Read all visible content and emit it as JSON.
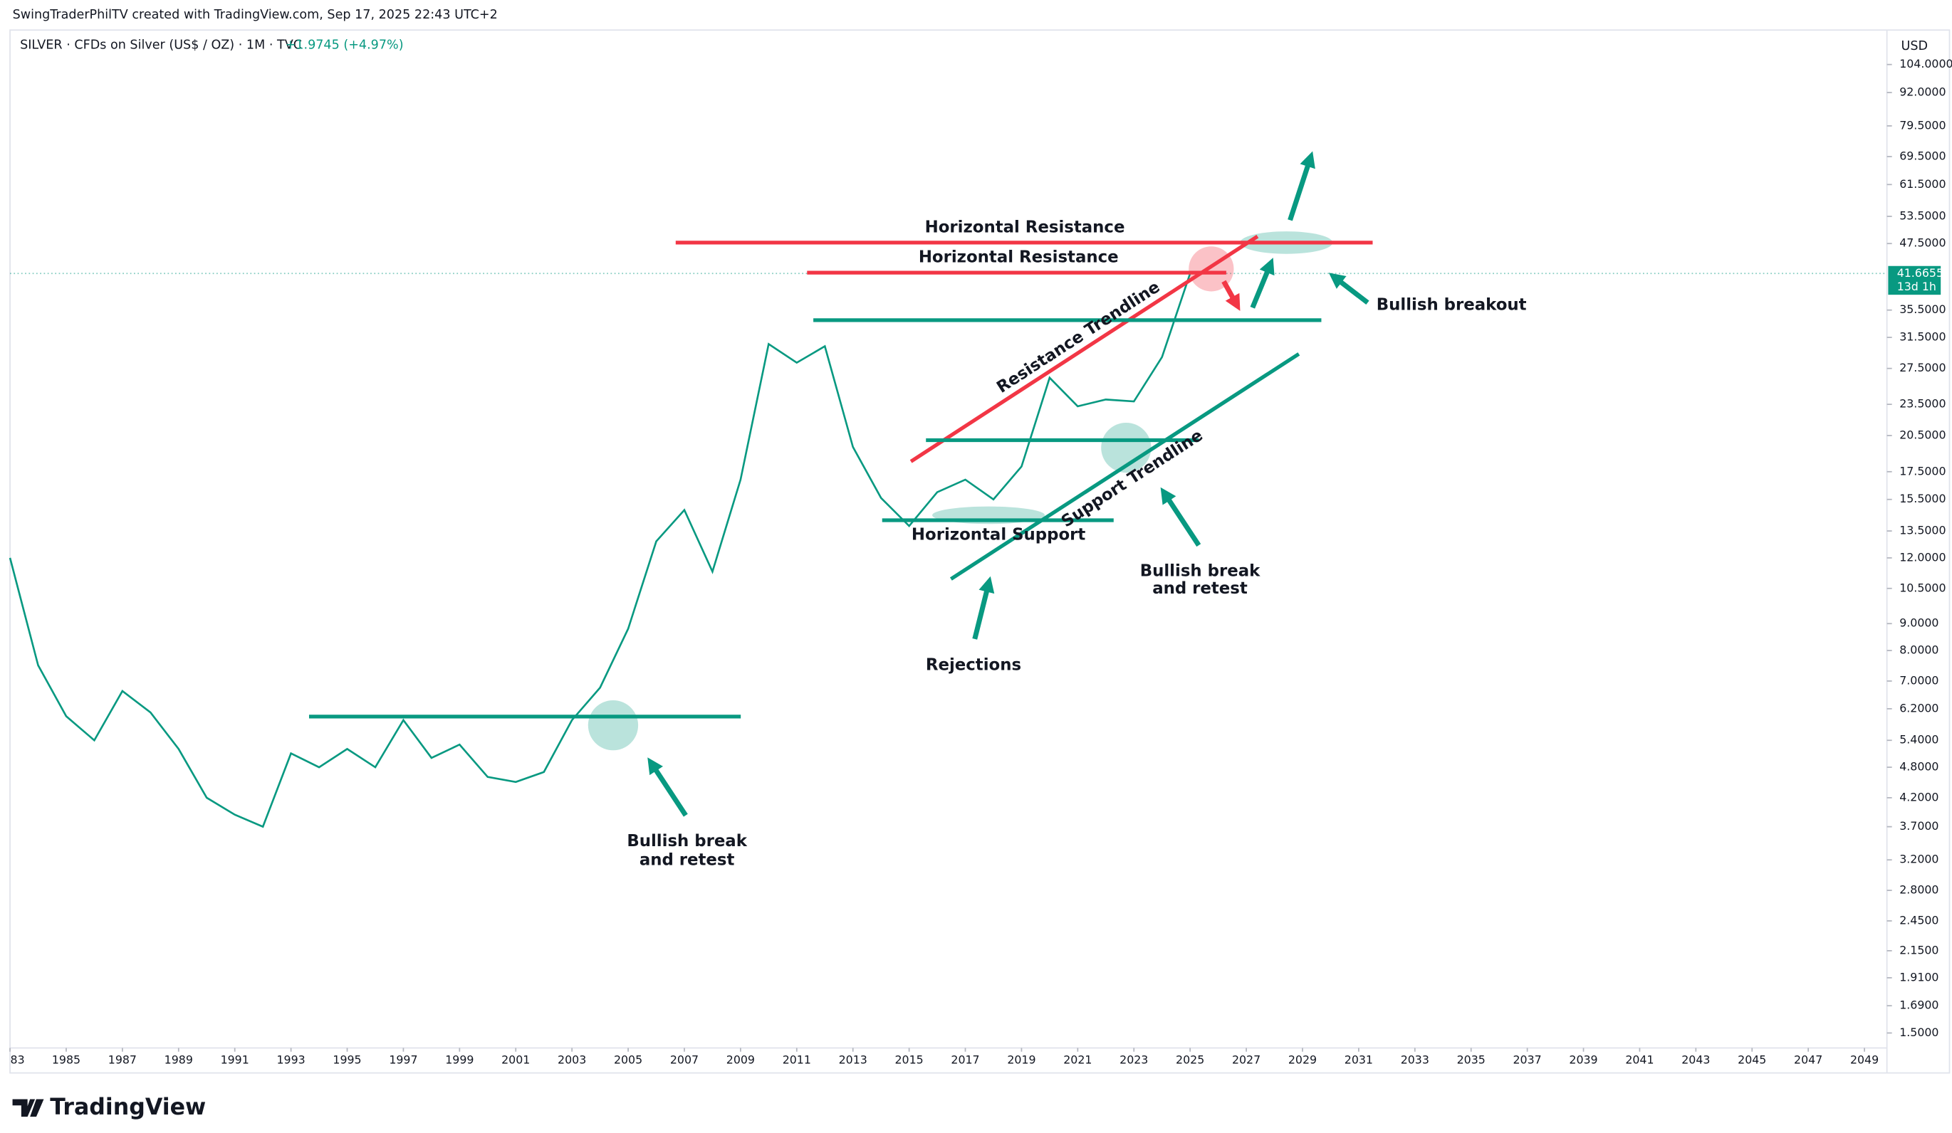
{
  "header": {
    "credit": "SwingTraderPhilTV created with TradingView.com, Sep 17, 2025 22:43 UTC+2",
    "symbol": "SILVER · CFDs on Silver (US$ / OZ) · 1M · TVC",
    "change": "+1.9745 (+4.97%)",
    "currency": "USD",
    "brand": "TradingView"
  },
  "chart_data": {
    "type": "line",
    "log_scale": true,
    "grid": false,
    "x": [
      1983,
      1984,
      1985,
      1986,
      1987,
      1988,
      1989,
      1990,
      1991,
      1992,
      1993,
      1994,
      1995,
      1996,
      1997,
      1998,
      1999,
      2000,
      2001,
      2002,
      2003,
      2004,
      2005,
      2006,
      2007,
      2008,
      2009,
      2010,
      2011,
      2012,
      2013,
      2014,
      2015,
      2016,
      2017,
      2018,
      2019,
      2020,
      2021,
      2022,
      2023,
      2024,
      2025
    ],
    "series": [
      {
        "name": "SILVER",
        "color": "#089981",
        "values": [
          12,
          7.5,
          6,
          5.4,
          6.7,
          6.1,
          5.2,
          4.2,
          3.9,
          3.7,
          5.1,
          4.8,
          5.2,
          4.8,
          5.9,
          5.0,
          5.3,
          4.6,
          4.5,
          4.7,
          5.9,
          6.8,
          8.8,
          12.9,
          14.8,
          11.3,
          16.9,
          30.6,
          28.2,
          30.3,
          19.5,
          15.6,
          13.8,
          16.0,
          16.9,
          15.5,
          17.9,
          26.4,
          23.3,
          24.0,
          23.8,
          28.9,
          41.6655
        ]
      }
    ],
    "last_price": {
      "value": 41.6655,
      "label": "41.6655"
    },
    "countdown": "13d 1h",
    "xlim": [
      1983,
      2049.8
    ],
    "xticks": [
      {
        "value": 1983,
        "label": "83"
      },
      1985,
      1987,
      1989,
      1991,
      1993,
      1995,
      1997,
      1999,
      2001,
      2003,
      2005,
      2007,
      2009,
      2011,
      2013,
      2015,
      2017,
      2019,
      2021,
      2023,
      2025,
      2027,
      2029,
      2031,
      2033,
      2035,
      2037,
      2039,
      2041,
      2043,
      2045,
      2047,
      2049
    ],
    "ylim": [
      1.405,
      107.8
    ],
    "yticks": [
      {
        "value": 104,
        "label": "104.0000"
      },
      {
        "value": 92,
        "label": "92.0000"
      },
      {
        "value": 79.5,
        "label": "79.5000"
      },
      {
        "value": 69.5,
        "label": "69.5000"
      },
      {
        "value": 61.5,
        "label": "61.5000"
      },
      {
        "value": 53.5,
        "label": "53.5000"
      },
      {
        "value": 47.5,
        "label": "47.5000"
      },
      {
        "value": 35.5,
        "label": "35.5000"
      },
      {
        "value": 31.5,
        "label": "31.5000"
      },
      {
        "value": 27.5,
        "label": "27.5000"
      },
      {
        "value": 23.5,
        "label": "23.5000"
      },
      {
        "value": 20.5,
        "label": "20.5000"
      },
      {
        "value": 17.5,
        "label": "17.5000"
      },
      {
        "value": 15.5,
        "label": "15.5000"
      },
      {
        "value": 13.5,
        "label": "13.5000"
      },
      {
        "value": 12,
        "label": "12.0000"
      },
      {
        "value": 10.5,
        "label": "10.5000"
      },
      {
        "value": 9,
        "label": "9.0000"
      },
      {
        "value": 8,
        "label": "8.0000"
      },
      {
        "value": 7,
        "label": "7.0000"
      },
      {
        "value": 6.2,
        "label": "6.2000"
      },
      {
        "value": 5.4,
        "label": "5.4000"
      },
      {
        "value": 4.8,
        "label": "4.8000"
      },
      {
        "value": 4.2,
        "label": "4.2000"
      },
      {
        "value": 3.7,
        "label": "3.7000"
      },
      {
        "value": 3.2,
        "label": "3.2000"
      },
      {
        "value": 2.8,
        "label": "2.8000"
      },
      {
        "value": 2.45,
        "label": "2.4500"
      },
      {
        "value": 2.15,
        "label": "2.1500"
      },
      {
        "value": 1.91,
        "label": "1.9100"
      },
      {
        "value": 1.69,
        "label": "1.6900"
      },
      {
        "value": 1.5,
        "label": "1.5000"
      }
    ],
    "annotations": [
      "Horizontal Resistance",
      "Horizontal Resistance",
      "Resistance Trendline",
      "Bullish breakout",
      "Horizontal Support",
      "Support Trendline",
      "Bullish break",
      "and retest",
      "Rejections",
      "Bullish break",
      "and retest"
    ]
  }
}
